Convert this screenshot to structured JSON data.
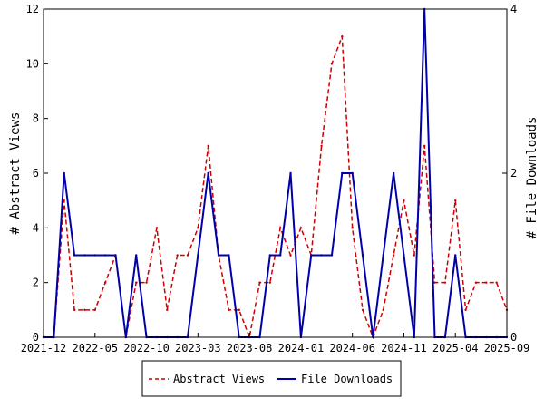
{
  "chart_data": {
    "type": "line",
    "title": "",
    "xlabel": "",
    "ylabel": "# Abstract Views",
    "y2label": "# File Downloads",
    "x_ticks": [
      "2021-12",
      "2022-05",
      "2022-10",
      "2023-03",
      "2023-08",
      "2024-01",
      "2024-06",
      "2024-11",
      "2025-04",
      "2025-09"
    ],
    "xlim": [
      "2021-12",
      "2025-09"
    ],
    "ylim": [
      0,
      12
    ],
    "y_ticks": [
      "0",
      "2",
      "4",
      "6",
      "8",
      "10",
      "12"
    ],
    "y2lim": [
      0,
      4
    ],
    "y2_ticks": [
      "0",
      "2",
      "4"
    ],
    "grid": false,
    "legend_position": "bottom",
    "series": [
      {
        "name": "Abstract Views",
        "axis": "left",
        "color": "#cc0000",
        "style": "dashed",
        "points": [
          [
            "2021-12",
            0
          ],
          [
            "2022-01",
            0
          ],
          [
            "2022-02",
            5
          ],
          [
            "2022-03",
            1
          ],
          [
            "2022-04",
            1
          ],
          [
            "2022-05",
            1
          ],
          [
            "2022-06",
            2
          ],
          [
            "2022-07",
            3
          ],
          [
            "2022-08",
            0
          ],
          [
            "2022-09",
            2
          ],
          [
            "2022-10",
            2
          ],
          [
            "2022-11",
            4
          ],
          [
            "2022-12",
            1
          ],
          [
            "2023-01",
            3
          ],
          [
            "2023-02",
            3
          ],
          [
            "2023-03",
            4
          ],
          [
            "2023-04",
            7
          ],
          [
            "2023-05",
            3
          ],
          [
            "2023-06",
            1
          ],
          [
            "2023-07",
            1
          ],
          [
            "2023-08",
            0
          ],
          [
            "2023-09",
            2
          ],
          [
            "2023-10",
            2
          ],
          [
            "2023-11",
            4
          ],
          [
            "2023-12",
            3
          ],
          [
            "2024-01",
            4
          ],
          [
            "2024-02",
            3
          ],
          [
            "2024-03",
            7
          ],
          [
            "2024-04",
            10
          ],
          [
            "2024-05",
            11
          ],
          [
            "2024-06",
            4
          ],
          [
            "2024-07",
            1
          ],
          [
            "2024-08",
            0
          ],
          [
            "2024-09",
            1
          ],
          [
            "2024-10",
            3
          ],
          [
            "2024-11",
            5
          ],
          [
            "2024-12",
            3
          ],
          [
            "2025-01",
            7
          ],
          [
            "2025-02",
            2
          ],
          [
            "2025-03",
            2
          ],
          [
            "2025-04",
            5
          ],
          [
            "2025-05",
            1
          ],
          [
            "2025-06",
            2
          ],
          [
            "2025-07",
            2
          ],
          [
            "2025-08",
            2
          ],
          [
            "2025-09",
            1
          ]
        ]
      },
      {
        "name": "File Downloads",
        "axis": "right",
        "color": "#0000aa",
        "style": "solid",
        "points": [
          [
            "2021-12",
            0
          ],
          [
            "2022-01",
            0
          ],
          [
            "2022-02",
            2
          ],
          [
            "2022-03",
            1
          ],
          [
            "2022-04",
            1
          ],
          [
            "2022-05",
            1
          ],
          [
            "2022-06",
            1
          ],
          [
            "2022-07",
            1
          ],
          [
            "2022-08",
            0
          ],
          [
            "2022-09",
            1
          ],
          [
            "2022-10",
            0
          ],
          [
            "2022-11",
            0
          ],
          [
            "2022-12",
            0
          ],
          [
            "2023-01",
            0
          ],
          [
            "2023-02",
            0
          ],
          [
            "2023-03",
            1
          ],
          [
            "2023-04",
            2
          ],
          [
            "2023-05",
            1
          ],
          [
            "2023-06",
            1
          ],
          [
            "2023-07",
            0
          ],
          [
            "2023-08",
            0
          ],
          [
            "2023-09",
            0
          ],
          [
            "2023-10",
            1
          ],
          [
            "2023-11",
            1
          ],
          [
            "2023-12",
            2
          ],
          [
            "2024-01",
            0
          ],
          [
            "2024-02",
            1
          ],
          [
            "2024-03",
            1
          ],
          [
            "2024-04",
            1
          ],
          [
            "2024-05",
            2
          ],
          [
            "2024-06",
            2
          ],
          [
            "2024-07",
            1
          ],
          [
            "2024-08",
            0
          ],
          [
            "2024-09",
            1
          ],
          [
            "2024-10",
            2
          ],
          [
            "2024-11",
            1
          ],
          [
            "2024-12",
            0
          ],
          [
            "2025-01",
            4
          ],
          [
            "2025-02",
            0
          ],
          [
            "2025-03",
            0
          ],
          [
            "2025-04",
            1
          ],
          [
            "2025-05",
            0
          ],
          [
            "2025-06",
            0
          ],
          [
            "2025-07",
            0
          ],
          [
            "2025-08",
            0
          ],
          [
            "2025-09",
            0
          ]
        ]
      }
    ]
  }
}
